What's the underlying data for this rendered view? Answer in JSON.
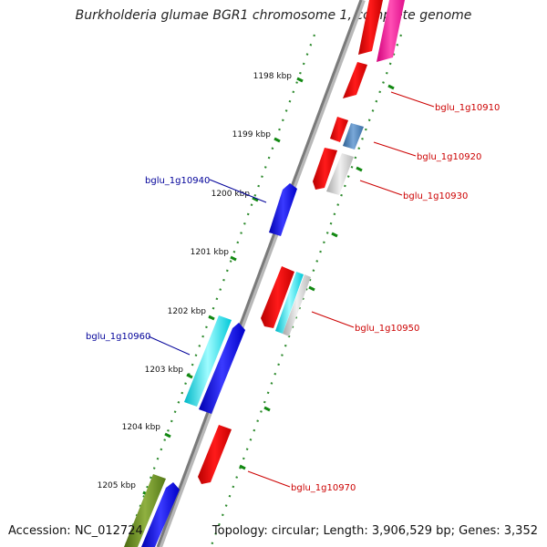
{
  "title": "Burkholderia glumae BGR1 chromosome 1, complete genome",
  "accession_text": "Accession: NC_012724",
  "topology_text": "Topology: circular; Length: 3,906,529 bp; Genes: 3,352",
  "ticks": [
    {
      "label": "1198 kbp"
    },
    {
      "label": "1199 kbp"
    },
    {
      "label": "1200 kbp"
    },
    {
      "label": "1201 kbp"
    },
    {
      "label": "1202 kbp"
    },
    {
      "label": "1203 kbp"
    },
    {
      "label": "1204 kbp"
    },
    {
      "label": "1205 kbp"
    }
  ],
  "gene_labels": [
    {
      "name": "bglu_1g10910",
      "strand": "forward"
    },
    {
      "name": "bglu_1g10920",
      "strand": "forward"
    },
    {
      "name": "bglu_1g10930",
      "strand": "forward"
    },
    {
      "name": "bglu_1g10940",
      "strand": "reverse"
    },
    {
      "name": "bglu_1g10950",
      "strand": "forward"
    },
    {
      "name": "bglu_1g10960",
      "strand": "reverse"
    },
    {
      "name": "bglu_1g10970",
      "strand": "forward"
    }
  ],
  "colors": {
    "forward_label": "#cc0000",
    "reverse_label": "#000099",
    "backbone": "#888888",
    "tick_dots": "#2e8b2e"
  }
}
